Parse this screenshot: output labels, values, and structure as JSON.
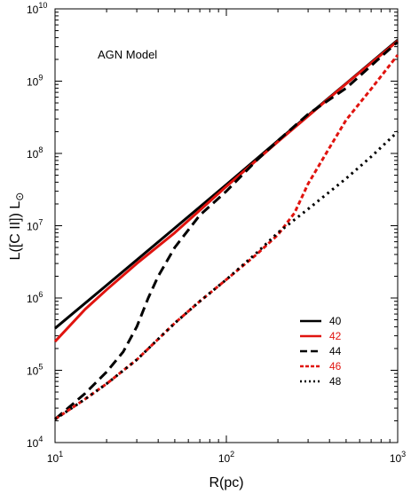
{
  "chart_data": {
    "type": "line",
    "title": "",
    "annotation": "AGN Model",
    "xlabel": "R(pc)",
    "ylabel": "L([C II]) L",
    "ylabel_subscript": "⊙",
    "xscale": "log",
    "yscale": "log",
    "xlim": [
      10,
      1000
    ],
    "ylim": [
      10000,
      10000000000
    ],
    "x_ticks": [
      {
        "base": "10",
        "exp": "1"
      },
      {
        "base": "10",
        "exp": "2"
      },
      {
        "base": "10",
        "exp": "3"
      }
    ],
    "y_ticks": [
      {
        "base": "10",
        "exp": "4"
      },
      {
        "base": "10",
        "exp": "5"
      },
      {
        "base": "10",
        "exp": "6"
      },
      {
        "base": "10",
        "exp": "7"
      },
      {
        "base": "10",
        "exp": "8"
      },
      {
        "base": "10",
        "exp": "9"
      },
      {
        "base": "10",
        "exp": "10"
      }
    ],
    "grid": false,
    "legend_position": "bottom-right",
    "series": [
      {
        "name": "40",
        "color": "#000000",
        "dash": "solid",
        "x": [
          10,
          20,
          50,
          100,
          200,
          500,
          1000
        ],
        "y": [
          380000,
          1500000,
          9300000,
          37000000,
          150000000,
          930000000,
          3700000000
        ]
      },
      {
        "name": "42",
        "color": "#e0140f",
        "dash": "solid",
        "x": [
          10,
          15,
          20,
          30,
          50,
          100,
          200,
          500,
          1000
        ],
        "y": [
          250000,
          700000,
          1300000,
          3000000,
          8000000,
          35000000,
          145000000,
          920000000,
          3600000000
        ]
      },
      {
        "name": "44",
        "color": "#000000",
        "dash": "long-dash",
        "x": [
          10,
          15,
          20,
          25,
          30,
          35,
          40,
          50,
          70,
          100,
          150,
          200,
          300,
          500,
          1000
        ],
        "y": [
          21000,
          48000,
          95000,
          180000,
          400000,
          1000000,
          2000000,
          5000000,
          14000000,
          30000000,
          80000000,
          150000000,
          350000000,
          800000000,
          3500000000
        ]
      },
      {
        "name": "46",
        "color": "#e0140f",
        "dash": "short-dash",
        "x": [
          10,
          15,
          20,
          30,
          50,
          70,
          100,
          150,
          200,
          250,
          300,
          400,
          500,
          700,
          1000
        ],
        "y": [
          21000,
          40000,
          65000,
          140000,
          450000,
          900000,
          1800000,
          4000000,
          7500000,
          15000000,
          38000000,
          120000000,
          290000000,
          780000000,
          2300000000
        ]
      },
      {
        "name": "48",
        "color": "#000000",
        "dash": "dotted",
        "x": [
          10,
          15,
          20,
          30,
          50,
          70,
          100,
          150,
          200,
          300,
          500,
          700,
          1000
        ],
        "y": [
          21000,
          40000,
          65000,
          140000,
          450000,
          900000,
          1800000,
          4200000,
          8000000,
          17000000,
          45000000,
          90000000,
          200000000
        ]
      }
    ]
  }
}
